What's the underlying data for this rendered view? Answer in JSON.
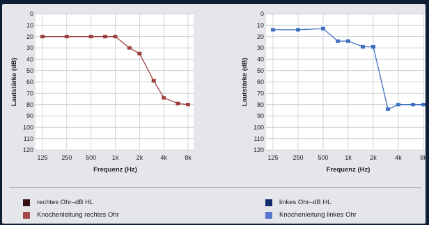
{
  "chart_data": [
    {
      "type": "line",
      "ear": "right",
      "xlabel": "Frequenz (Hz)",
      "ylabel": "Lautstärke (dB)",
      "x_categories": [
        "125",
        "250",
        "500",
        "1k",
        "2k",
        "4k",
        "8k"
      ],
      "y_ticks": [
        0,
        10,
        20,
        30,
        40,
        50,
        60,
        70,
        80,
        90,
        100,
        110,
        120
      ],
      "ylim": [
        0,
        120
      ],
      "y_inverted": true,
      "grid": true,
      "series": [
        {
          "name": "rechtes Ohr–dB HL",
          "color": "#9c3f3f",
          "points": [
            {
              "freq": "125",
              "db": 20
            },
            {
              "freq": "250",
              "db": 20
            },
            {
              "freq": "500",
              "db": 20
            },
            {
              "freq": "750",
              "db": 20
            },
            {
              "freq": "1k",
              "db": 20
            },
            {
              "freq": "1.5k",
              "db": 30
            },
            {
              "freq": "2k",
              "db": 35
            },
            {
              "freq": "3k",
              "db": 59
            },
            {
              "freq": "4k",
              "db": 74
            },
            {
              "freq": "6k",
              "db": 79
            },
            {
              "freq": "8k",
              "db": 80
            }
          ]
        }
      ]
    },
    {
      "type": "line",
      "ear": "left",
      "xlabel": "Frequenz (Hz)",
      "ylabel": "Lautstärke (dB)",
      "x_categories": [
        "125",
        "250",
        "500",
        "1k",
        "2k",
        "4k",
        "8k"
      ],
      "y_ticks": [
        0,
        10,
        20,
        30,
        40,
        50,
        60,
        70,
        80,
        90,
        100,
        110,
        120
      ],
      "ylim": [
        0,
        120
      ],
      "y_inverted": true,
      "grid": true,
      "series": [
        {
          "name": "linkes Ohr–dB HL",
          "color": "#3f6fc0",
          "points": [
            {
              "freq": "125",
              "db": 14
            },
            {
              "freq": "250",
              "db": 14
            },
            {
              "freq": "500",
              "db": 13
            },
            {
              "freq": "750",
              "db": 24
            },
            {
              "freq": "1k",
              "db": 24
            },
            {
              "freq": "1.5k",
              "db": 29
            },
            {
              "freq": "2k",
              "db": 29
            },
            {
              "freq": "3k",
              "db": 84
            },
            {
              "freq": "4k",
              "db": 80
            },
            {
              "freq": "6k",
              "db": 80
            },
            {
              "freq": "8k",
              "db": 80
            }
          ]
        }
      ]
    }
  ],
  "legend": {
    "right": [
      {
        "label": "rechtes Ohr–dB HL",
        "color": "#3a1216"
      },
      {
        "label": "Knochenleitung rechtes Ohr",
        "color": "#a34848"
      }
    ],
    "left": [
      {
        "label": "linkes Ohr–dB HL",
        "color": "#12296e"
      },
      {
        "label": "Knochenleitung linkes Ohr",
        "color": "#5577cc"
      }
    ]
  }
}
